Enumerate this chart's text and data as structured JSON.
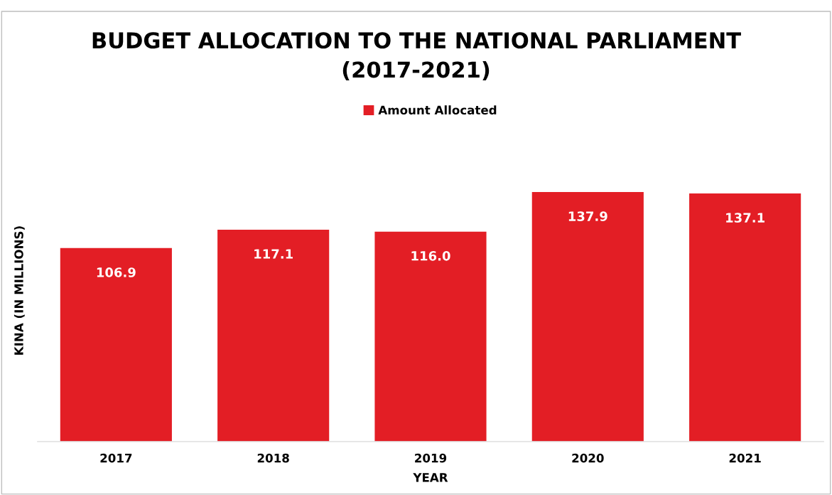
{
  "chart_data": {
    "type": "bar",
    "title": "BUDGET ALLOCATION TO THE NATIONAL PARLIAMENT\n(2017-2021)",
    "xlabel": "YEAR",
    "ylabel": "KINA (IN MILLIONS)",
    "categories": [
      "2017",
      "2018",
      "2019",
      "2020",
      "2021"
    ],
    "series": [
      {
        "name": "Amount Allocated",
        "color": "#e31e25",
        "values": [
          106.9,
          117.1,
          116.0,
          137.9,
          137.1
        ],
        "value_labels": [
          "106.9",
          "117.1",
          "116.0",
          "137.9",
          "137.1"
        ]
      }
    ],
    "legend": "top",
    "grid": false,
    "tick_labels": "x"
  }
}
